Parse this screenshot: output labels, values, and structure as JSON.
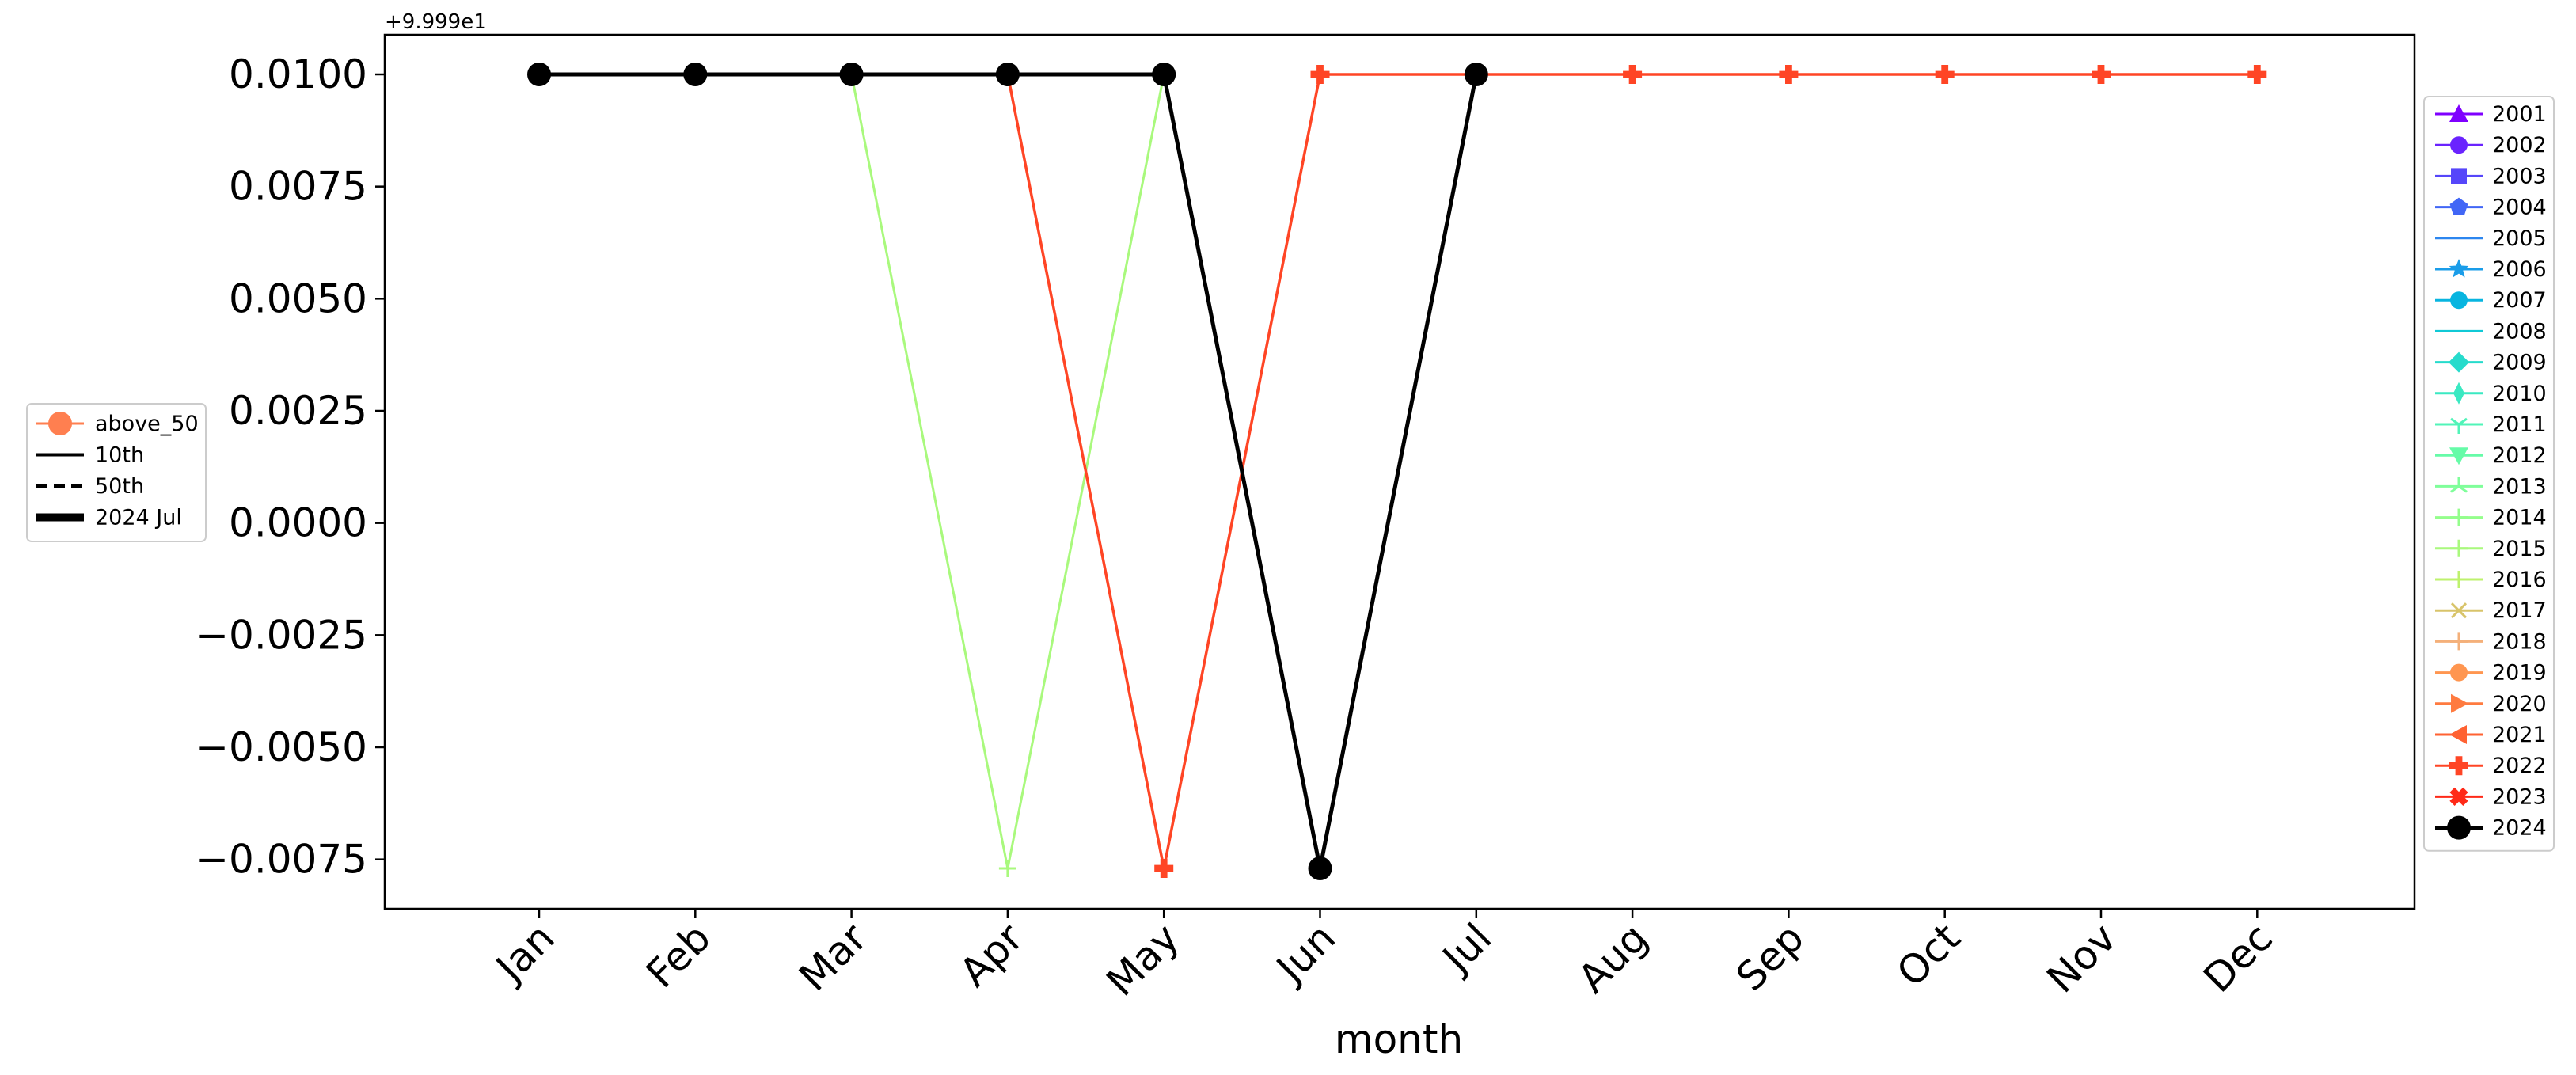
{
  "chart_data": {
    "type": "line",
    "title": "",
    "xlabel": "month",
    "ylabel": "",
    "offset_label": "+9.999e1",
    "categories": [
      "Jan",
      "Feb",
      "Mar",
      "Apr",
      "May",
      "Jun",
      "Jul",
      "Aug",
      "Sep",
      "Oct",
      "Nov",
      "Dec"
    ],
    "ylim": [
      -0.0084,
      0.0109
    ],
    "yticks": [
      -0.0075,
      -0.005,
      -0.0025,
      0.0,
      0.0025,
      0.005,
      0.0075,
      0.01
    ],
    "ytick_labels": [
      "−0.0075",
      "−0.0050",
      "−0.0025",
      "0.0000",
      "0.0025",
      "0.0050",
      "0.0075",
      "0.0100"
    ],
    "grid": false,
    "legend_right": {
      "placement": "right, outside plot",
      "entries": [
        {
          "label": "2001",
          "color": "#7f00ff",
          "marker": "triangle"
        },
        {
          "label": "2002",
          "color": "#6a23fe",
          "marker": "circle"
        },
        {
          "label": "2003",
          "color": "#5646fa",
          "marker": "square"
        },
        {
          "label": "2004",
          "color": "#4166f6",
          "marker": "pentagon"
        },
        {
          "label": "2005",
          "color": "#2c86ef",
          "marker": "none"
        },
        {
          "label": "2006",
          "color": "#1a9de9",
          "marker": "star"
        },
        {
          "label": "2007",
          "color": "#08b5e0",
          "marker": "circle"
        },
        {
          "label": "2008",
          "color": "#10c9d6",
          "marker": "none"
        },
        {
          "label": "2009",
          "color": "#26dbcc",
          "marker": "diamond"
        },
        {
          "label": "2010",
          "color": "#3ae9c2",
          "marker": "thin_diamond"
        },
        {
          "label": "2011",
          "color": "#51f4b8",
          "marker": "tri_down"
        },
        {
          "label": "2012",
          "color": "#66fba8",
          "marker": "triangle_down"
        },
        {
          "label": "2013",
          "color": "#7ffe9a",
          "marker": "tri_up"
        },
        {
          "label": "2014",
          "color": "#94fe8c",
          "marker": "plus"
        },
        {
          "label": "2015",
          "color": "#a9f97d",
          "marker": "plus"
        },
        {
          "label": "2016",
          "color": "#bef26d",
          "marker": "plus"
        },
        {
          "label": "2017",
          "color": "#d8c46a",
          "marker": "x"
        },
        {
          "label": "2018",
          "color": "#f4b07a",
          "marker": "plus"
        },
        {
          "label": "2019",
          "color": "#ff9650",
          "marker": "circle"
        },
        {
          "label": "2020",
          "color": "#ff7b40",
          "marker": "triangle_right"
        },
        {
          "label": "2021",
          "color": "#ff6232",
          "marker": "triangle_left"
        },
        {
          "label": "2022",
          "color": "#ff4525",
          "marker": "plus_filled"
        },
        {
          "label": "2023",
          "color": "#ff2a18",
          "marker": "x_filled"
        },
        {
          "label": "2024",
          "color": "#000000",
          "marker": "circle_large"
        }
      ]
    },
    "legend_left": {
      "placement": "left, outside plot",
      "entries": [
        {
          "label": "above_50",
          "color": "#ff7f50",
          "style": "circle_line"
        },
        {
          "label": "10th",
          "color": "#000000",
          "style": "solid"
        },
        {
          "label": "50th",
          "color": "#000000",
          "style": "dashed"
        },
        {
          "label": "2024 Jul",
          "color": "#000000",
          "style": "thick"
        }
      ]
    },
    "series": [
      {
        "name": "2015",
        "color": "#a9f97d",
        "marker": "plus",
        "lw": 3,
        "values": [
          null,
          null,
          0.01,
          -0.0077,
          0.01,
          null,
          null,
          null,
          null,
          null,
          null,
          null
        ]
      },
      {
        "name": "2022",
        "color": "#ff4525",
        "marker": "plus_filled",
        "lw": 3.5,
        "values": [
          null,
          null,
          null,
          0.01,
          -0.0077,
          0.01,
          0.01,
          0.01,
          0.01,
          0.01,
          0.01,
          0.01
        ]
      },
      {
        "name": "2024",
        "color": "#000000",
        "marker": "circle_large",
        "lw": 5,
        "values": [
          0.01,
          0.01,
          0.01,
          0.01,
          0.01,
          -0.0077,
          0.01,
          null,
          null,
          null,
          null,
          null
        ]
      }
    ]
  }
}
